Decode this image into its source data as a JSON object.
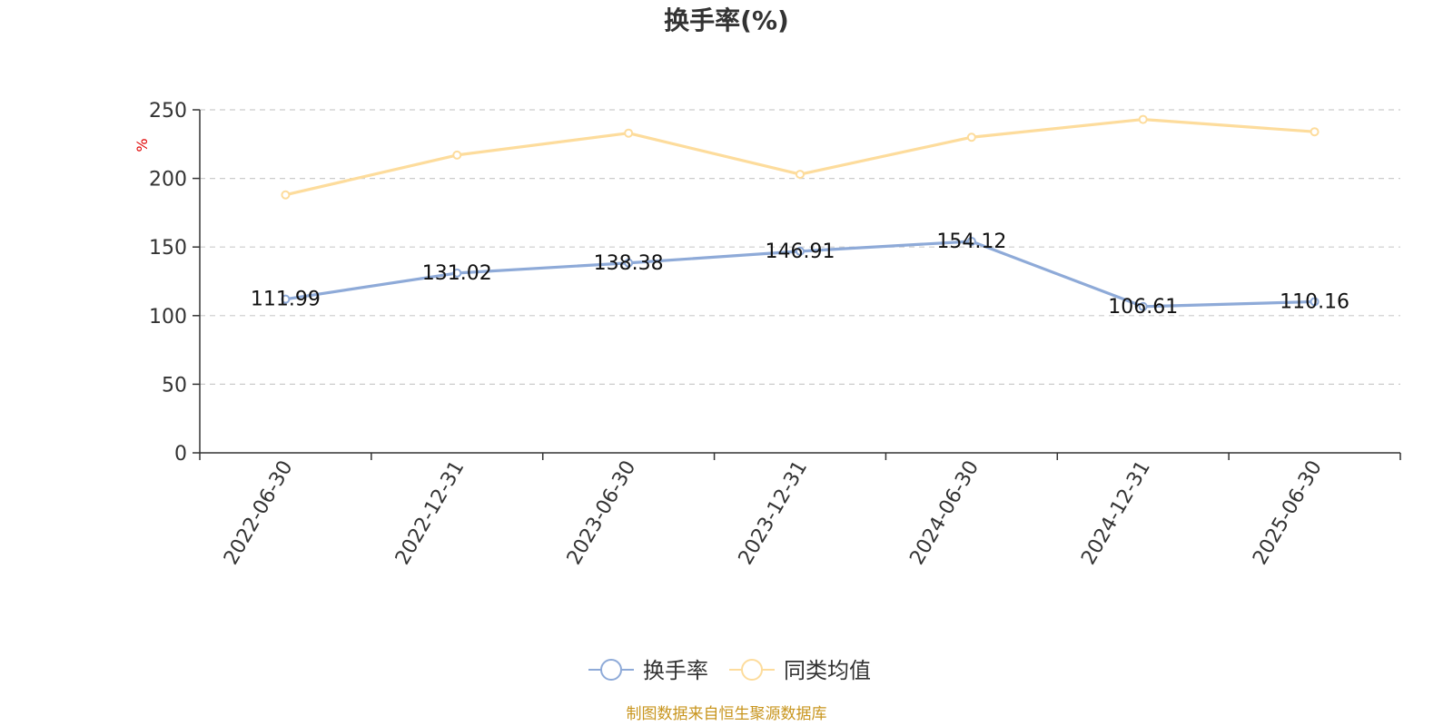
{
  "chart_data": {
    "type": "line",
    "title": "换手率(%)",
    "ylabel": "%",
    "xlabel": "",
    "ylim": [
      0,
      250
    ],
    "yticks": [
      0,
      50,
      100,
      150,
      200,
      250
    ],
    "categories": [
      "2022-06-30",
      "2022-12-31",
      "2023-06-30",
      "2023-12-31",
      "2024-06-30",
      "2024-12-31",
      "2025-06-30"
    ],
    "grid": true,
    "legend_position": "bottom",
    "series": [
      {
        "name": "换手率",
        "color": "#8eaad8",
        "values": [
          111.99,
          131.02,
          138.38,
          146.91,
          154.12,
          106.61,
          110.16
        ],
        "labels": [
          "111.99",
          "131.02",
          "138.38",
          "146.91",
          "154.12",
          "106.61",
          "110.16"
        ]
      },
      {
        "name": "同类均值",
        "color": "#fddc9c",
        "values": [
          188,
          217,
          233,
          203,
          230,
          243,
          234
        ]
      }
    ],
    "source": "制图数据来自恒生聚源数据库"
  }
}
